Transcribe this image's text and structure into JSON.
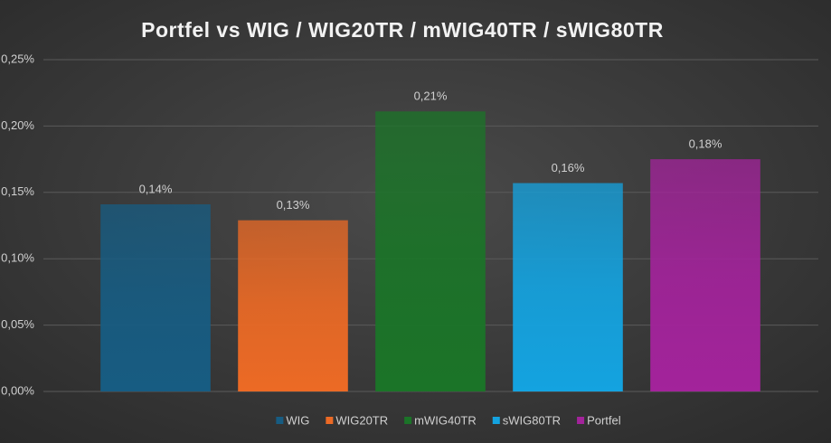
{
  "chart_data": {
    "type": "bar",
    "title": "Portfel vs WIG / WIG20TR / mWIG40TR / sWIG80TR",
    "categories": [
      "WIG",
      "WIG20TR",
      "mWIG40TR",
      "sWIG80TR",
      "Portfel"
    ],
    "values": [
      0.141,
      0.129,
      0.211,
      0.157,
      0.175
    ],
    "value_labels": [
      "0,14%",
      "0,13%",
      "0,21%",
      "0,16%",
      "0,18%"
    ],
    "colors": [
      "#175c82",
      "#ec6a25",
      "#1b7428",
      "#14a3e0",
      "#a3239b"
    ],
    "ylim": [
      0,
      0.25
    ],
    "yticks": [
      {
        "value": 0,
        "label": "0,00%"
      },
      {
        "value": 0.05,
        "label": "0,05%"
      },
      {
        "value": 0.1,
        "label": "0,10%"
      },
      {
        "value": 0.15,
        "label": "0,15%"
      },
      {
        "value": 0.2,
        "label": "0,20%"
      },
      {
        "value": 0.25,
        "label": "0,25%"
      }
    ],
    "grid": true,
    "legend": "bottom"
  }
}
